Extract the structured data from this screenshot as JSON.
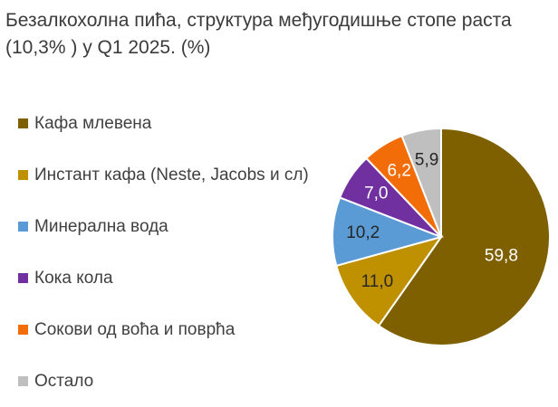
{
  "title": {
    "line1": "Безалкохолна пића, структура међугодишње стопе раста",
    "line2": "(10,3% ) у Q1 2025. (%)"
  },
  "chart_data": {
    "type": "pie",
    "title": "Безалкохолна пића, структура међугодишње стопе раста (10,3% ) у Q1 2025. (%)",
    "slices": [
      {
        "name": "Кафа млевена",
        "value": 59.8,
        "label": "59,8",
        "color": "#7f6000",
        "label_color": "#ffffff"
      },
      {
        "name": "Инстант кафа (Neste, Jacobs и сл)",
        "value": 11.0,
        "label": "11,0",
        "color": "#bf9000",
        "label_color": "#262626"
      },
      {
        "name": "Минерална вода",
        "value": 10.2,
        "label": "10,2",
        "color": "#5b9bd5",
        "label_color": "#262626"
      },
      {
        "name": "Кока кола",
        "value": 7.0,
        "label": "7,0",
        "color": "#7030a0",
        "label_color": "#ffffff"
      },
      {
        "name": "Сокови од воћа и поврћа",
        "value": 6.2,
        "label": "6,2",
        "color": "#f26d07",
        "label_color": "#ffffff"
      },
      {
        "name": "Остало",
        "value": 5.9,
        "label": "5,9",
        "color": "#bfbfbf",
        "label_color": "#262626"
      }
    ],
    "start_angle": "12 o'clock",
    "direction": "clockwise",
    "legend_position": "left"
  }
}
